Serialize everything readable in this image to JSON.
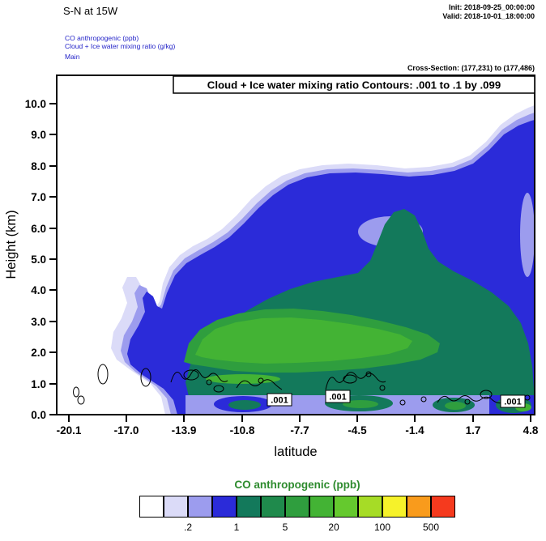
{
  "header": {
    "title": "S-N at 15W",
    "init": "Init: 2018-09-25_00:00:00",
    "valid": "Valid: 2018-10-01_18:00:00",
    "layers": [
      "CO anthropogenic  (ppb)",
      "Cloud + Ice water mixing ratio  (g/kg)",
      "Main"
    ],
    "cross_section": "Cross-Section: (177,231) to (177,486)"
  },
  "plot": {
    "banner": "Cloud + Ice water mixing ratio Contours: .001 to .1 by .099",
    "ylabel": "Height (km)",
    "xlabel": "latitude",
    "yticks": [
      "0.0",
      "1.0",
      "2.0",
      "3.0",
      "4.0",
      "5.0",
      "6.0",
      "7.0",
      "8.0",
      "9.0",
      "10.0"
    ],
    "xticks": [
      "-20.1",
      "-17.0",
      "-13.9",
      "-10.8",
      "-7.7",
      "-4.5",
      "-1.4",
      "1.7",
      "4.8"
    ],
    "contour_labels": [
      ".001",
      ".001",
      ".001"
    ]
  },
  "colorbar": {
    "title": "CO anthropogenic  (ppb)",
    "colors": [
      "#ffffff",
      "#dbdbf8",
      "#9c9cee",
      "#2b2bd9",
      "#13795b",
      "#1f8a4c",
      "#2f9e3e",
      "#43b334",
      "#65c92e",
      "#a6dc26",
      "#f6f22a",
      "#f99b1c",
      "#f53a1e"
    ],
    "labels": [
      ".2",
      "1",
      "5",
      "20",
      "100",
      "500"
    ]
  },
  "chart_data": {
    "type": "heatmap",
    "subtype": "filled_contour_vertical_cross_section",
    "title": "S-N at 15W",
    "fill_variable": "CO anthropogenic (ppb)",
    "contour_variable": "Cloud + Ice water mixing ratio (g/kg)",
    "contour_note": "Cloud + Ice water mixing ratio Contours: .001 to .1 by .099",
    "cross_section": "(177,231) to (177,486)",
    "init_time": "2018-09-25_00:00:00",
    "valid_time": "2018-10-01_18:00:00",
    "xlabel": "latitude",
    "ylabel": "Height (km)",
    "xlim": [
      -20.1,
      4.8
    ],
    "ylim": [
      0.0,
      10.9
    ],
    "x_ticks": [
      -20.1,
      -17.0,
      -13.9,
      -10.8,
      -7.7,
      -4.5,
      -1.4,
      1.7,
      4.8
    ],
    "y_ticks": [
      0.0,
      1.0,
      2.0,
      3.0,
      4.0,
      5.0,
      6.0,
      7.0,
      8.0,
      9.0,
      10.0
    ],
    "grid": false,
    "legend_position": "bottom-colorbar",
    "fill_levels_ppb": [
      0.1,
      0.2,
      0.5,
      1,
      2,
      5,
      10,
      20,
      50,
      100,
      200,
      500
    ],
    "colorbar_tick_labels": [
      0.2,
      1,
      5,
      20,
      100,
      500
    ],
    "cloud_contour_levels_gkg": [
      0.001,
      0.1
    ],
    "features": [
      {
        "name": "co-plume-envelope",
        "level_ppb": "0.1-1",
        "extent": "lat -17.5 to 4.8, surface to ~8 km, rising to ~10 km near lat 2 to 4.8; narrow finger near lat -16.5 up to ~4.5 km"
      },
      {
        "name": "main-blue-mass",
        "level_ppb": "1-5",
        "extent": "lat -14 to 4.8, ~0.5 km to ~7.5 km, deepest toward the right edge"
      },
      {
        "name": "dark-green-mass",
        "level_ppb": "5-20",
        "extent": "lat -13.5 to 4.8, ~0.5 km to ~6.5 km with an upward bulge near lat -3"
      },
      {
        "name": "bright-green-max",
        "level_ppb": "20-50",
        "extent": "lat -13.5 to -4.5, centered near 2-3 km altitude"
      },
      {
        "name": "sub-cloud-light-band",
        "level_ppb": "0.2-1",
        "extent": "lat -13.5 to 4.8 below ~0.7 km with embedded higher-CO patches"
      },
      {
        "name": "cloud-ice-contours",
        "level_gkg": "0.001",
        "extent": "shallow closed contours near 0.5-1.5 km scattered along the whole section, labeled .001 near lat -9, -6.5 and 3.5"
      }
    ]
  }
}
